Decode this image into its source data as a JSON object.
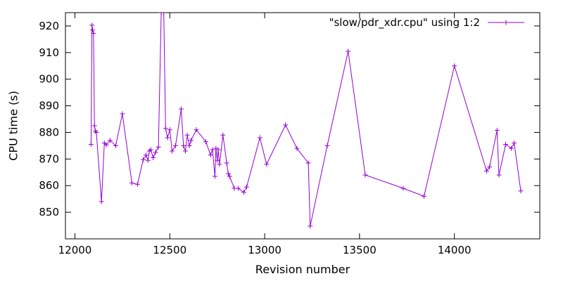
{
  "chart_data": {
    "type": "line",
    "xlabel": "Revision number",
    "ylabel": "CPU time (s)",
    "xlim": [
      11950,
      14450
    ],
    "ylim": [
      840,
      925
    ],
    "x_ticks": [
      12000,
      12500,
      13000,
      13500,
      14000
    ],
    "y_ticks": [
      850,
      860,
      870,
      880,
      890,
      900,
      910,
      920
    ],
    "grid": false,
    "legend_position": "top-right",
    "point_marker": "plus",
    "series": [
      {
        "name": "\"slow/pdr_xdr.cpu\" using 1:2",
        "color": "#9400d3",
        "points": [
          [
            12085,
            875.5
          ],
          [
            12090,
            920.3
          ],
          [
            12093,
            918.5
          ],
          [
            12098,
            917.2
          ],
          [
            12103,
            882.5
          ],
          [
            12108,
            880.5
          ],
          [
            12113,
            880.0
          ],
          [
            12140,
            854.0
          ],
          [
            12155,
            876.0
          ],
          [
            12165,
            875.3
          ],
          [
            12185,
            877.0
          ],
          [
            12215,
            875.0
          ],
          [
            12250,
            887.0
          ],
          [
            12300,
            861.0
          ],
          [
            12330,
            860.5
          ],
          [
            12360,
            869.8
          ],
          [
            12375,
            871.5
          ],
          [
            12385,
            869.5
          ],
          [
            12392,
            873.0
          ],
          [
            12400,
            873.5
          ],
          [
            12412,
            870.5
          ],
          [
            12425,
            872.5
          ],
          [
            12440,
            874.5
          ],
          [
            12455,
            925.0
          ],
          [
            12468,
            925.0
          ],
          [
            12478,
            881.5
          ],
          [
            12488,
            878.0
          ],
          [
            12500,
            881.0
          ],
          [
            12512,
            873.0
          ],
          [
            12530,
            875.0
          ],
          [
            12560,
            888.8
          ],
          [
            12572,
            875.0
          ],
          [
            12582,
            873.0
          ],
          [
            12592,
            879.0
          ],
          [
            12603,
            875.0
          ],
          [
            12612,
            877.0
          ],
          [
            12640,
            881.0
          ],
          [
            12690,
            876.5
          ],
          [
            12715,
            871.5
          ],
          [
            12725,
            873.5
          ],
          [
            12738,
            863.5
          ],
          [
            12743,
            874.0
          ],
          [
            12750,
            869.5
          ],
          [
            12755,
            873.5
          ],
          [
            12762,
            868.0
          ],
          [
            12780,
            879.0
          ],
          [
            12800,
            868.5
          ],
          [
            12808,
            864.5
          ],
          [
            12815,
            863.5
          ],
          [
            12840,
            859.0
          ],
          [
            12860,
            859.0
          ],
          [
            12890,
            857.5
          ],
          [
            12905,
            859.5
          ],
          [
            12975,
            878.0
          ],
          [
            13010,
            868.0
          ],
          [
            13110,
            882.8
          ],
          [
            13170,
            874.0
          ],
          [
            13230,
            868.5
          ],
          [
            13240,
            844.8
          ],
          [
            13330,
            875.0
          ],
          [
            13440,
            910.5
          ],
          [
            13530,
            864.0
          ],
          [
            13730,
            859.0
          ],
          [
            13840,
            856.0
          ],
          [
            14000,
            905.0
          ],
          [
            14170,
            865.5
          ],
          [
            14185,
            867.0
          ],
          [
            14225,
            880.8
          ],
          [
            14235,
            864.0
          ],
          [
            14270,
            875.5
          ],
          [
            14300,
            874.0
          ],
          [
            14315,
            876.0
          ],
          [
            14350,
            858.0
          ]
        ]
      }
    ]
  }
}
